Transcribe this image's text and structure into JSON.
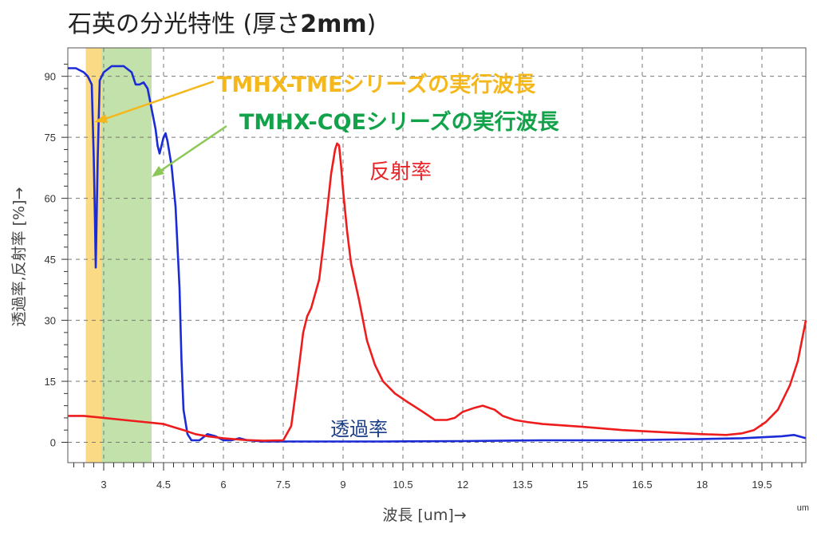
{
  "title": {
    "main": "石英の分光特性 (厚さ",
    "bold": "2mm",
    "close": ")"
  },
  "chart_data": {
    "type": "line",
    "xlabel": "波長 [um]→",
    "ylabel": "透過率,反射率 [%]→",
    "x_unit": "um",
    "xlim": [
      2.1,
      20.6
    ],
    "ylim": [
      -5,
      97
    ],
    "x_ticks": [
      3,
      4.5,
      6,
      7.5,
      9,
      10.5,
      12,
      13.5,
      15,
      16.5,
      18,
      19.5
    ],
    "x_tick_labels": [
      "3",
      "4.5",
      "6",
      "7.5",
      "9",
      "10.5",
      "12",
      "13.5",
      "15",
      "16.5",
      "18",
      "19.5"
    ],
    "y_ticks": [
      0,
      15,
      30,
      45,
      60,
      75,
      90
    ],
    "y_tick_labels": [
      "0",
      "15",
      "30",
      "45",
      "60",
      "75",
      "90"
    ],
    "grid": true,
    "bands": [
      {
        "name": "TMHX-TMEシリーズの実行波長",
        "x_range": [
          2.55,
          2.95
        ],
        "color": "#f9d470"
      },
      {
        "name": "TMHX-CQEシリーズの実行波長",
        "x_range": [
          2.95,
          4.2
        ],
        "color": "#b8dc9b"
      }
    ],
    "series": [
      {
        "name": "透過率",
        "color": "#1b2bd6",
        "x": [
          2.1,
          2.3,
          2.5,
          2.6,
          2.7,
          2.75,
          2.78,
          2.8,
          2.85,
          2.9,
          3.0,
          3.2,
          3.5,
          3.7,
          3.8,
          3.9,
          4.0,
          4.1,
          4.2,
          4.3,
          4.35,
          4.4,
          4.5,
          4.55,
          4.6,
          4.7,
          4.8,
          4.9,
          4.95,
          5.0,
          5.1,
          5.2,
          5.4,
          5.6,
          5.8,
          6.0,
          6.2,
          6.4,
          6.6,
          7.0,
          8.0,
          10.0,
          12.0,
          14.0,
          16.0,
          18.0,
          19.0,
          20.0,
          20.3,
          20.6
        ],
        "y": [
          92,
          92,
          91,
          90,
          88,
          70,
          55,
          43,
          70,
          89,
          91,
          92.5,
          92.5,
          91,
          88,
          88,
          88.5,
          87,
          82,
          77,
          73,
          71,
          75,
          76,
          74,
          68,
          58,
          38,
          20,
          8,
          2,
          0.5,
          0.5,
          2,
          1.5,
          0.5,
          0.5,
          1,
          0.5,
          0.2,
          0.2,
          0.2,
          0.3,
          0.5,
          0.5,
          0.8,
          1,
          1.5,
          1.8,
          1
        ],
        "label": "透過率"
      },
      {
        "name": "反射率",
        "color": "#ee1c1c",
        "x": [
          2.1,
          2.5,
          3.0,
          3.5,
          4.0,
          4.5,
          5.0,
          5.3,
          5.6,
          6.0,
          6.5,
          7.0,
          7.5,
          7.7,
          7.85,
          8.0,
          8.1,
          8.2,
          8.4,
          8.5,
          8.6,
          8.7,
          8.8,
          8.85,
          8.9,
          8.95,
          9.0,
          9.1,
          9.2,
          9.4,
          9.6,
          9.8,
          10.0,
          10.3,
          10.6,
          11.0,
          11.3,
          11.6,
          11.8,
          12.0,
          12.3,
          12.5,
          12.8,
          13.0,
          13.3,
          13.6,
          14.0,
          15.0,
          16.0,
          17.0,
          18.0,
          18.6,
          19.0,
          19.3,
          19.6,
          19.9,
          20.2,
          20.4,
          20.6
        ],
        "y": [
          6.5,
          6.5,
          6,
          5.5,
          5,
          4.5,
          3,
          2,
          1.5,
          1,
          0.6,
          0.4,
          0.5,
          4,
          15,
          27,
          31,
          33,
          40,
          48,
          57,
          66,
          72,
          73.5,
          73,
          68,
          62,
          52,
          44,
          35,
          25,
          19,
          15,
          12,
          10,
          7.5,
          5.5,
          5.5,
          6,
          7.5,
          8.5,
          9,
          8,
          6.5,
          5.5,
          5,
          4.5,
          3.8,
          3,
          2.5,
          2,
          1.8,
          2.2,
          3,
          5,
          8,
          14,
          20,
          30
        ],
        "label": "反射率"
      }
    ]
  },
  "annotations": {
    "tme_label": "TMHX-TMEシリーズの実行波長",
    "cqe_label": "TMHX-CQEシリーズの実行波長",
    "reflect_label": "反射率",
    "trans_label": "透過率"
  }
}
